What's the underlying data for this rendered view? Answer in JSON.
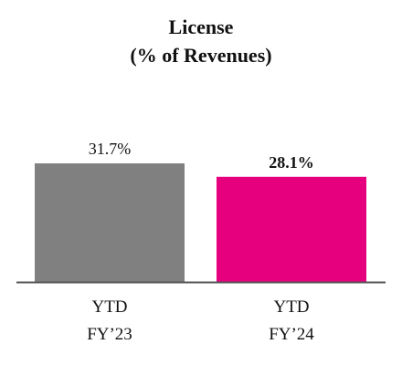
{
  "chart_data": {
    "type": "bar",
    "title_line1": "License",
    "title_line2": "(% of Revenues)",
    "categories": [
      {
        "line1": "YTD",
        "line2": "FY’23"
      },
      {
        "line1": "YTD",
        "line2": "FY’24"
      }
    ],
    "values": [
      31.7,
      28.1
    ],
    "value_labels": [
      "31.7%",
      "28.1%"
    ],
    "bar_colors": [
      "#808080",
      "#e6007e"
    ],
    "bold_labels": [
      false,
      true
    ],
    "ylim": [
      0,
      40
    ],
    "grid": false,
    "axis_color": "#555555"
  }
}
